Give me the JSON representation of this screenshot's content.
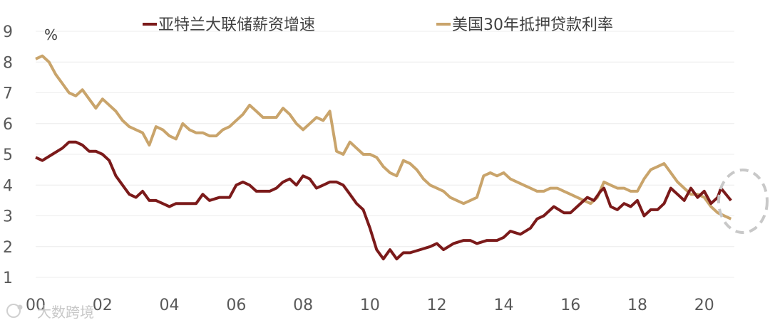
{
  "chart_data": {
    "type": "line",
    "title": "",
    "xlabel": "",
    "ylabel": "%",
    "ylim": [
      1,
      9
    ],
    "xlim": [
      2000,
      2020.9
    ],
    "x_tick_labels": [
      "00",
      "02",
      "04",
      "06",
      "08",
      "10",
      "12",
      "14",
      "16",
      "18",
      "20"
    ],
    "y_tick_labels": [
      "1",
      "2",
      "3",
      "4",
      "5",
      "6",
      "7",
      "8",
      "9"
    ],
    "grid": true,
    "legend_position": "top",
    "series": [
      {
        "name": "亚特兰大联储薪资增速",
        "color": "#7B1A1A",
        "x": [
          2000.0,
          2000.2,
          2000.5,
          2000.8,
          2001.0,
          2001.2,
          2001.4,
          2001.6,
          2001.8,
          2002.0,
          2002.2,
          2002.4,
          2002.6,
          2002.8,
          2003.0,
          2003.2,
          2003.4,
          2003.6,
          2003.8,
          2004.0,
          2004.2,
          2004.5,
          2004.8,
          2005.0,
          2005.2,
          2005.5,
          2005.8,
          2006.0,
          2006.2,
          2006.4,
          2006.6,
          2006.8,
          2007.0,
          2007.2,
          2007.4,
          2007.6,
          2007.8,
          2008.0,
          2008.2,
          2008.4,
          2008.6,
          2008.8,
          2009.0,
          2009.2,
          2009.4,
          2009.6,
          2009.8,
          2010.0,
          2010.2,
          2010.4,
          2010.6,
          2010.8,
          2011.0,
          2011.2,
          2011.5,
          2011.8,
          2012.0,
          2012.2,
          2012.5,
          2012.8,
          2013.0,
          2013.2,
          2013.5,
          2013.8,
          2014.0,
          2014.2,
          2014.5,
          2014.8,
          2015.0,
          2015.2,
          2015.5,
          2015.8,
          2016.0,
          2016.2,
          2016.5,
          2016.7,
          2016.9,
          2017.0,
          2017.2,
          2017.4,
          2017.6,
          2017.8,
          2018.0,
          2018.2,
          2018.4,
          2018.6,
          2018.8,
          2019.0,
          2019.2,
          2019.4,
          2019.6,
          2019.8,
          2020.0,
          2020.2,
          2020.4,
          2020.5,
          2020.8
        ],
        "values": [
          4.9,
          4.8,
          5.0,
          5.2,
          5.4,
          5.4,
          5.3,
          5.1,
          5.1,
          5.0,
          4.8,
          4.3,
          4.0,
          3.7,
          3.6,
          3.8,
          3.5,
          3.5,
          3.4,
          3.3,
          3.4,
          3.4,
          3.4,
          3.7,
          3.5,
          3.6,
          3.6,
          4.0,
          4.1,
          4.0,
          3.8,
          3.8,
          3.8,
          3.9,
          4.1,
          4.2,
          4.0,
          4.3,
          4.2,
          3.9,
          4.0,
          4.1,
          4.1,
          4.0,
          3.7,
          3.4,
          3.2,
          2.6,
          1.9,
          1.6,
          1.9,
          1.6,
          1.8,
          1.8,
          1.9,
          2.0,
          2.1,
          1.9,
          2.1,
          2.2,
          2.2,
          2.1,
          2.2,
          2.2,
          2.3,
          2.5,
          2.4,
          2.6,
          2.9,
          3.0,
          3.3,
          3.1,
          3.1,
          3.3,
          3.6,
          3.5,
          3.8,
          3.9,
          3.3,
          3.2,
          3.4,
          3.3,
          3.5,
          3.0,
          3.2,
          3.2,
          3.4,
          3.9,
          3.7,
          3.5,
          3.9,
          3.6,
          3.8,
          3.4,
          3.6,
          3.9,
          3.5
        ],
        "y_unit": "%"
      },
      {
        "name": "美国30年抵押贷款利率",
        "color": "#C9A46B",
        "x": [
          2000.0,
          2000.2,
          2000.4,
          2000.6,
          2000.8,
          2001.0,
          2001.2,
          2001.4,
          2001.6,
          2001.8,
          2002.0,
          2002.2,
          2002.4,
          2002.6,
          2002.8,
          2003.0,
          2003.2,
          2003.4,
          2003.6,
          2003.8,
          2004.0,
          2004.2,
          2004.4,
          2004.6,
          2004.8,
          2005.0,
          2005.2,
          2005.4,
          2005.6,
          2005.8,
          2006.0,
          2006.2,
          2006.4,
          2006.6,
          2006.8,
          2007.0,
          2007.2,
          2007.4,
          2007.6,
          2007.8,
          2008.0,
          2008.2,
          2008.4,
          2008.6,
          2008.8,
          2009.0,
          2009.2,
          2009.4,
          2009.6,
          2009.8,
          2010.0,
          2010.2,
          2010.4,
          2010.6,
          2010.8,
          2011.0,
          2011.2,
          2011.4,
          2011.6,
          2011.8,
          2012.0,
          2012.2,
          2012.4,
          2012.6,
          2012.8,
          2013.0,
          2013.2,
          2013.4,
          2013.6,
          2013.8,
          2014.0,
          2014.2,
          2014.4,
          2014.6,
          2014.8,
          2015.0,
          2015.2,
          2015.4,
          2015.6,
          2015.8,
          2016.0,
          2016.2,
          2016.4,
          2016.6,
          2016.8,
          2017.0,
          2017.2,
          2017.4,
          2017.6,
          2017.8,
          2018.0,
          2018.2,
          2018.4,
          2018.6,
          2018.8,
          2019.0,
          2019.2,
          2019.4,
          2019.6,
          2019.8,
          2020.0,
          2020.2,
          2020.4,
          2020.6,
          2020.8
        ],
        "values": [
          8.1,
          8.2,
          8.0,
          7.6,
          7.3,
          7.0,
          6.9,
          7.1,
          6.8,
          6.5,
          6.8,
          6.6,
          6.4,
          6.1,
          5.9,
          5.8,
          5.7,
          5.3,
          5.9,
          5.8,
          5.6,
          5.5,
          6.0,
          5.8,
          5.7,
          5.7,
          5.6,
          5.6,
          5.8,
          5.9,
          6.1,
          6.3,
          6.6,
          6.4,
          6.2,
          6.2,
          6.2,
          6.5,
          6.3,
          6.0,
          5.8,
          6.0,
          6.2,
          6.1,
          6.4,
          5.1,
          5.0,
          5.4,
          5.2,
          5.0,
          5.0,
          4.9,
          4.6,
          4.4,
          4.3,
          4.8,
          4.7,
          4.5,
          4.2,
          4.0,
          3.9,
          3.8,
          3.6,
          3.5,
          3.4,
          3.5,
          3.6,
          4.3,
          4.4,
          4.3,
          4.4,
          4.2,
          4.1,
          4.0,
          3.9,
          3.8,
          3.8,
          3.9,
          3.9,
          3.8,
          3.7,
          3.6,
          3.5,
          3.4,
          3.6,
          4.1,
          4.0,
          3.9,
          3.9,
          3.8,
          3.8,
          4.2,
          4.5,
          4.6,
          4.7,
          4.4,
          4.1,
          3.9,
          3.7,
          3.7,
          3.6,
          3.3,
          3.1,
          3.0,
          2.9
        ]
      }
    ],
    "annotations": [
      "dashed-circle-highlight-latest-values"
    ],
    "watermark": "大数跨境"
  }
}
